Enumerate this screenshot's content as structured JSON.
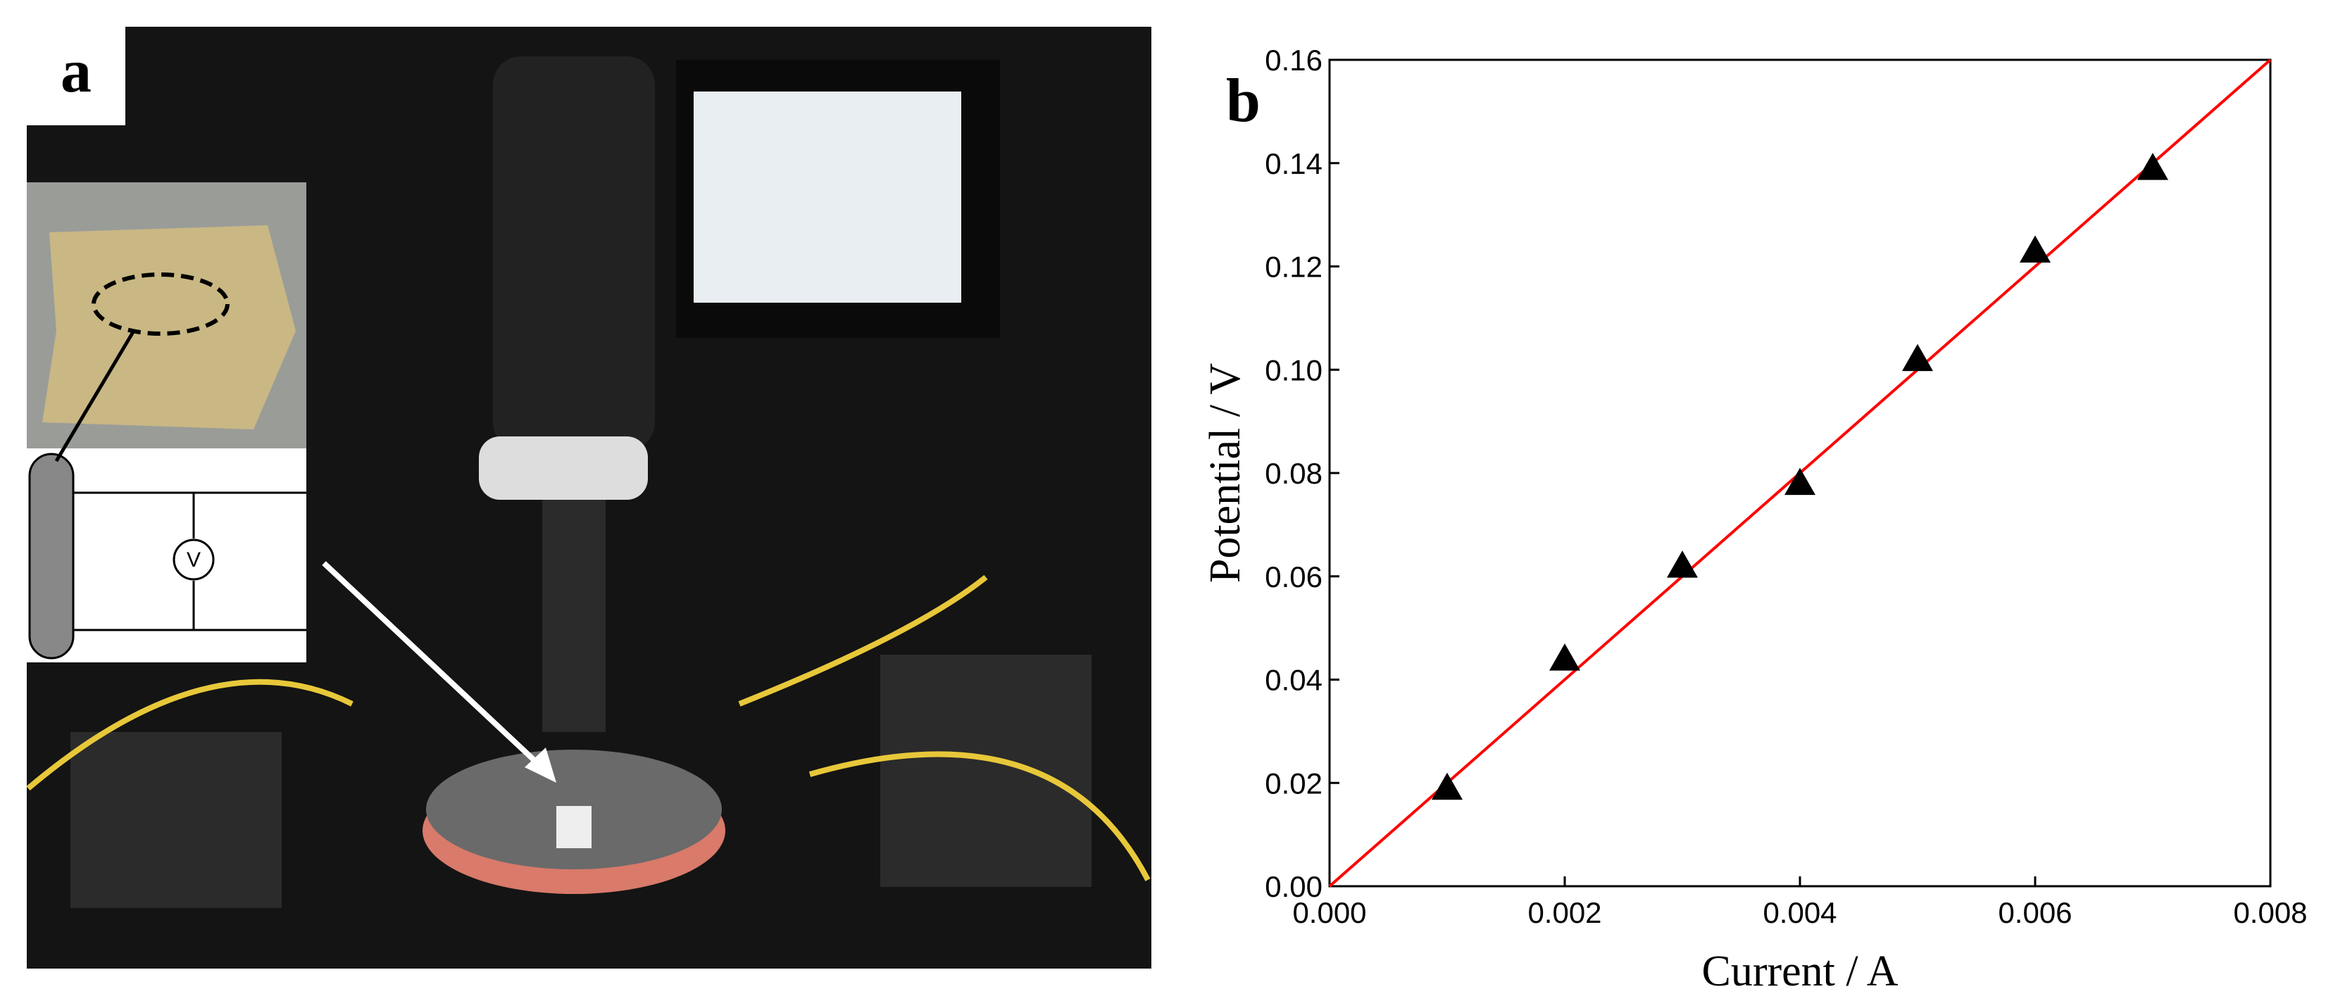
{
  "panel_a": {
    "label": "a",
    "circuit_symbol": "V"
  },
  "chart_data": {
    "type": "scatter",
    "panel_label": "b",
    "x_label": "Current / A",
    "y_label": "Potential / V",
    "x": [
      0.001,
      0.002,
      0.003,
      0.004,
      0.005,
      0.006,
      0.007
    ],
    "values": [
      0.019,
      0.044,
      0.062,
      0.078,
      0.102,
      0.123,
      0.139
    ],
    "color": "#000000",
    "fit_line": {
      "color": "#ff0000",
      "x": [
        0,
        0.008
      ],
      "values": [
        0,
        0.16
      ]
    },
    "xlim": [
      0,
      0.008
    ],
    "xticks": [
      {
        "value": 0,
        "label": "0.000"
      },
      {
        "value": 0.002,
        "label": "0.002"
      },
      {
        "value": 0.004,
        "label": "0.004"
      },
      {
        "value": 0.006,
        "label": "0.006"
      },
      {
        "value": 0.008,
        "label": "0.008"
      }
    ],
    "ylim": [
      0,
      0.16
    ],
    "yticks": [
      {
        "value": 0,
        "label": "0.00"
      },
      {
        "value": 0.02,
        "label": "0.02"
      },
      {
        "value": 0.04,
        "label": "0.04"
      },
      {
        "value": 0.06,
        "label": "0.06"
      },
      {
        "value": 0.08,
        "label": "0.08"
      },
      {
        "value": 0.1,
        "label": "0.10"
      },
      {
        "value": 0.12,
        "label": "0.12"
      },
      {
        "value": 0.14,
        "label": "0.14"
      },
      {
        "value": 0.16,
        "label": "0.16"
      }
    ]
  }
}
